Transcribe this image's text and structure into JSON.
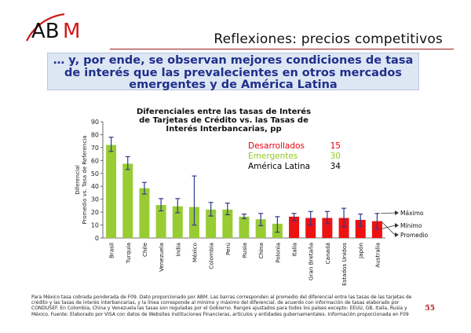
{
  "logo": {
    "text": "ABM"
  },
  "header": {
    "title": "Reflexiones: precios competitivos",
    "headline": "… y, por ende, se observan mejores condiciones de tasa de interés que las prevalecientes en otros mercados emergentes y de América Latina"
  },
  "chart_data": {
    "type": "bar",
    "title": "Diferenciales entre las tasas de Interés de Tarjetas de Crédito vs. las Tasas de Interés Interbancarias, pp",
    "ylabel": "Diferencial Promedio vs. Tasa de Referencia",
    "xlabel": "",
    "ylim": [
      0,
      90
    ],
    "yticks": [
      0,
      10,
      20,
      30,
      40,
      50,
      60,
      70,
      80,
      90
    ],
    "grid": false,
    "categories": [
      "Brasil",
      "Turquía",
      "Chile",
      "Venezuela",
      "India",
      "México",
      "Colombia",
      "Perú",
      "Rusia",
      "China",
      "Polonia",
      "Italia",
      "Gran Bretaña",
      "Canadá",
      "Estados Unidos",
      "Japón",
      "Australia"
    ],
    "values": [
      72,
      57.5,
      38.5,
      25.5,
      24.5,
      24,
      22,
      22,
      16.5,
      14.5,
      11,
      16.5,
      15.5,
      15.5,
      15.5,
      14,
      13
    ],
    "min": [
      67,
      53,
      34,
      21,
      19.5,
      10,
      17,
      18,
      15,
      9.5,
      4.5,
      13.5,
      10,
      11,
      8.5,
      9,
      7
    ],
    "max": [
      78,
      63,
      43,
      30.5,
      30.5,
      48,
      27.5,
      27,
      18.5,
      19,
      16.5,
      19,
      20.5,
      20.5,
      23,
      18.5,
      19
    ],
    "groups": [
      "Emergentes",
      "Emergentes",
      "Emergentes",
      "Emergentes",
      "Emergentes",
      "Emergentes",
      "Emergentes",
      "Emergentes",
      "Emergentes",
      "Emergentes",
      "Emergentes",
      "Desarrollados",
      "Desarrollados",
      "Desarrollados",
      "Desarrollados",
      "Desarrollados",
      "Desarrollados"
    ],
    "annotations": [
      "Máximo",
      "Mínimo",
      "Promedio"
    ]
  },
  "legend": [
    {
      "label": "Desarrollados",
      "value": "15",
      "color": "#e8000f"
    },
    {
      "label": "Emergentes",
      "value": "30",
      "color": "#8fcc1f"
    },
    {
      "label": "América Latina",
      "value": "34",
      "color": "#000000"
    }
  ],
  "colors": {
    "emergentes": "#99cc33",
    "desarrollados": "#ee1111",
    "error_bar": "#2d3a8c",
    "headline_text": "#1f2f8c",
    "page_number": "#b21a1a"
  },
  "footnote": "Para México tasa cobrada ponderada de F09. Dato proporcionado por ABM. Las barras corresponden al promedio del diferencial entre las tasas de las tarjetas de crédito y las tasas de interés interbancarias, y la línea corresponde al mínimo y máximo del diferencial, de acuerdo con información de tasas elaborado por CONDUSEF. En Colombia, China y Venezuela las tasas son reguladas por el Gobierno. Rangos ajustados para todos los países excepto: EEUU, GB, Italia, Rusia y México. Fuente: Elaborado por VISA con datos de Websites Instituciones Financieras, artículos y entidades gubernamentales. Información proporcionada en F09",
  "page_number": "55"
}
